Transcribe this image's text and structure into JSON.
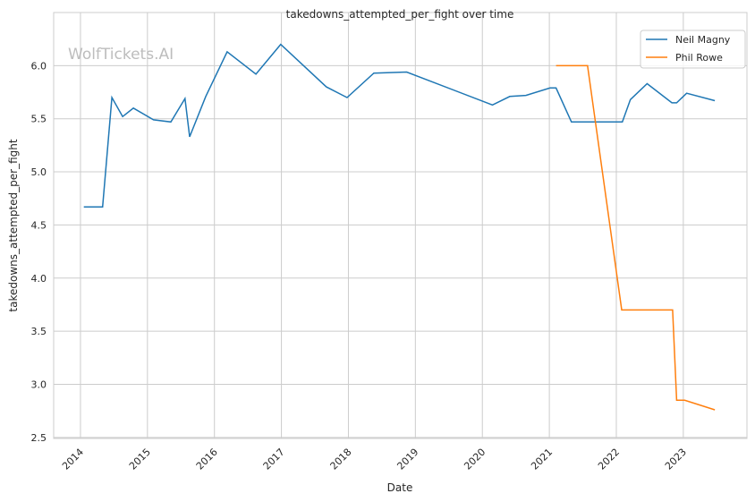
{
  "chart_data": {
    "type": "line",
    "title": "takedowns_attempted_per_fight over time",
    "xlabel": "Date",
    "ylabel": "takedowns_attempted_per_fight",
    "watermark": "WolfTickets.AI",
    "xlim": [
      2013.6,
      2023.95
    ],
    "ylim": [
      2.49,
      6.5
    ],
    "xticks": [
      2014,
      2015,
      2016,
      2017,
      2018,
      2019,
      2020,
      2021,
      2022,
      2023
    ],
    "xtick_labels": [
      "2014",
      "2015",
      "2016",
      "2017",
      "2018",
      "2019",
      "2020",
      "2021",
      "2022",
      "2023"
    ],
    "yticks": [
      2.5,
      3.0,
      3.5,
      4.0,
      4.5,
      5.0,
      5.5,
      6.0
    ],
    "ytick_labels": [
      "2.5",
      "3.0",
      "3.5",
      "4.0",
      "4.5",
      "5.0",
      "5.5",
      "6.0"
    ],
    "grid": true,
    "legend_position": "top-right",
    "series": [
      {
        "name": "Neil Magny",
        "color": "#1f77b4",
        "x": [
          2014.05,
          2014.33,
          2014.47,
          2014.63,
          2014.79,
          2015.09,
          2015.35,
          2015.56,
          2015.63,
          2015.87,
          2016.19,
          2016.62,
          2016.99,
          2017.67,
          2017.98,
          2018.38,
          2018.87,
          2020.15,
          2020.41,
          2020.65,
          2021.01,
          2021.1,
          2021.33,
          2022.09,
          2022.21,
          2022.46,
          2022.83,
          2022.9,
          2023.05,
          2023.47
        ],
        "y": [
          4.67,
          4.67,
          5.7,
          5.52,
          5.6,
          5.49,
          5.47,
          5.69,
          5.33,
          5.71,
          6.13,
          5.92,
          6.2,
          5.8,
          5.7,
          5.93,
          5.94,
          5.63,
          5.71,
          5.72,
          5.79,
          5.79,
          5.47,
          5.47,
          5.68,
          5.83,
          5.65,
          5.65,
          5.74,
          5.67
        ]
      },
      {
        "name": "Phil Rowe",
        "color": "#ff7f0e",
        "x": [
          2021.1,
          2021.57,
          2022.08,
          2022.84,
          2022.9,
          2023.02,
          2023.47
        ],
        "y": [
          6.0,
          6.0,
          3.7,
          3.7,
          2.85,
          2.85,
          2.76
        ]
      }
    ]
  }
}
